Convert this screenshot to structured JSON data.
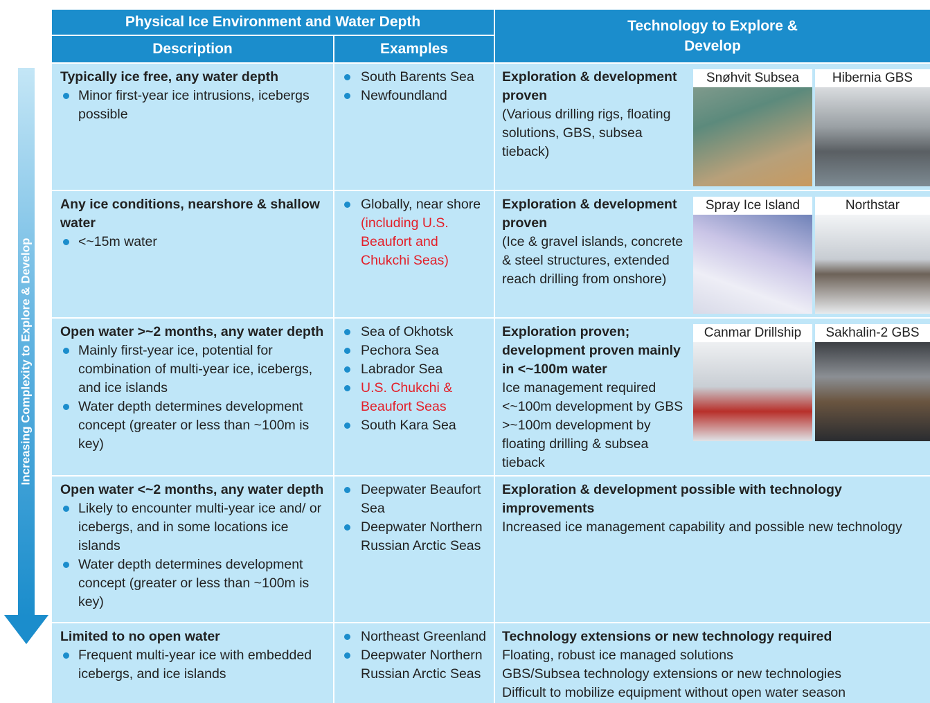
{
  "side_label": "Increasing Complexity to Explore & Develop",
  "header": {
    "group": "Physical Ice Environment and Water Depth",
    "description": "Description",
    "examples": "Examples",
    "technology": "Technology to Explore & Develop"
  },
  "rows": [
    {
      "description": {
        "title": "Typically ice free, any water depth",
        "bullets": [
          "Minor first-year ice intrusions, icebergs possible"
        ]
      },
      "examples": [
        [
          {
            "text": "South Barents Sea"
          }
        ],
        [
          {
            "text": "Newfoundland"
          }
        ]
      ],
      "technology": {
        "heading": "Exploration & development proven",
        "lines": [
          "(Various drilling rigs, floating solutions, GBS, subsea tieback)"
        ],
        "images": [
          {
            "caption": "Snøhvit Subsea"
          },
          {
            "caption": "Hibernia GBS"
          }
        ]
      }
    },
    {
      "description": {
        "title": "Any ice conditions, nearshore & shallow water",
        "bullets": [
          "<~15m water"
        ]
      },
      "examples": [
        [
          {
            "text": "Globally, near shore"
          },
          {
            "text": "(including U.S. Beaufort and Chukchi Seas)",
            "color": "#e3202a"
          }
        ]
      ],
      "technology": {
        "heading": "Exploration & development proven",
        "lines": [
          "(Ice & gravel islands, concrete & steel structures, extended reach drilling from onshore)"
        ],
        "images": [
          {
            "caption": "Spray Ice Island"
          },
          {
            "caption": "Northstar"
          }
        ]
      }
    },
    {
      "description": {
        "title": "Open water >~2 months, any water depth",
        "bullets": [
          "Mainly first-year ice, potential for combination of multi-year ice, icebergs, and ice islands",
          "Water depth determines development concept (greater or less than ~100m is key)"
        ]
      },
      "examples": [
        [
          {
            "text": "Sea of Okhotsk"
          }
        ],
        [
          {
            "text": "Pechora Sea"
          }
        ],
        [
          {
            "text": "Labrador Sea"
          }
        ],
        [
          {
            "text": "U.S. Chukchi & Beaufort Seas",
            "color": "#e3202a"
          }
        ],
        [
          {
            "text": "South Kara Sea"
          }
        ]
      ],
      "technology": {
        "heading": "Exploration proven; development proven mainly in <~100m water",
        "lines": [
          "Ice management required",
          "<~100m development by GBS",
          ">~100m development by floating drilling & subsea tieback"
        ],
        "images": [
          {
            "caption": "Canmar Drillship"
          },
          {
            "caption": "Sakhalin-2 GBS"
          }
        ]
      }
    },
    {
      "description": {
        "title": "Open water <~2 months, any water depth",
        "bullets": [
          "Likely to encounter multi-year ice and/ or icebergs, and in some locations ice islands",
          "Water depth determines development concept (greater or less than ~100m is key)"
        ]
      },
      "examples": [
        [
          {
            "text": "Deepwater Beaufort Sea"
          }
        ],
        [
          {
            "text": "Deepwater Northern Russian Arctic Seas"
          }
        ]
      ],
      "technology": {
        "heading": "Exploration & development possible with technology improvements",
        "lines": [
          "Increased ice management capability and possible new technology"
        ],
        "images": []
      }
    },
    {
      "description": {
        "title": "Limited to no open water",
        "bullets": [
          "Frequent multi-year ice with embedded icebergs, and ice islands"
        ]
      },
      "examples": [
        [
          {
            "text": "Northeast Greenland"
          }
        ],
        [
          {
            "text": "Deepwater Northern Russian Arctic Seas"
          }
        ]
      ],
      "technology": {
        "heading": "Technology extensions or new technology required",
        "lines": [
          "Floating, robust ice managed solutions",
          "GBS/Subsea technology extensions or new technologies",
          "Difficult to mobilize equipment without open water season"
        ],
        "images": []
      }
    }
  ]
}
